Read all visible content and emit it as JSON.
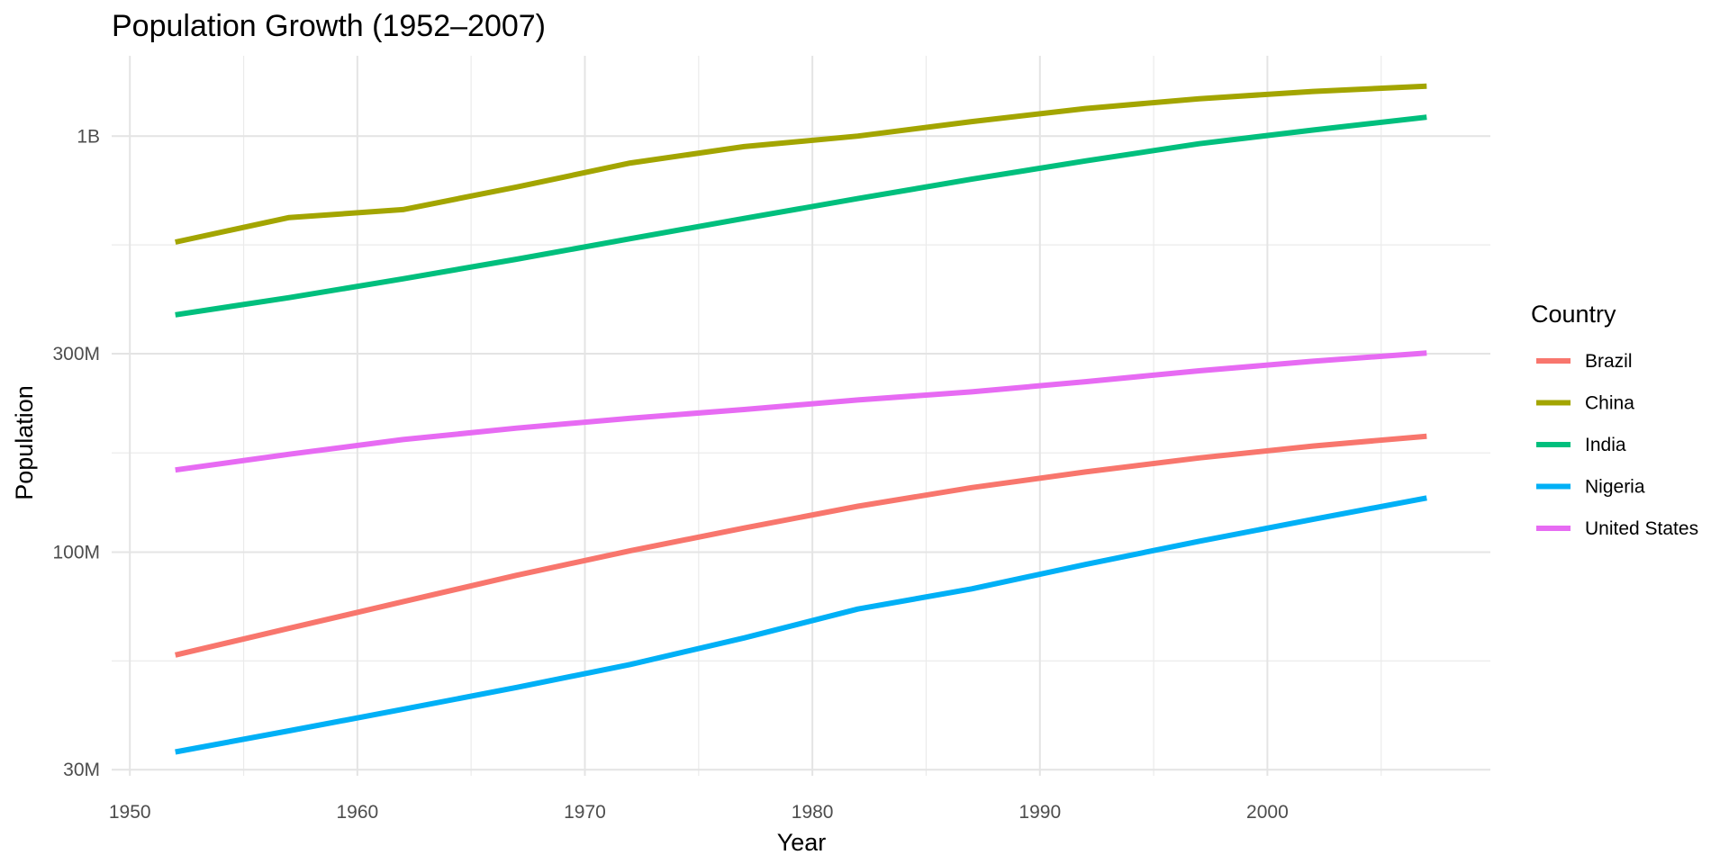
{
  "chart_data": {
    "type": "line",
    "title": "Population Growth (1952–2007)",
    "xlabel": "Year",
    "ylabel": "Population",
    "y_scale": "log",
    "xlim": [
      1949.2,
      2009.8
    ],
    "ylim": [
      29000000,
      1560000000
    ],
    "x_ticks": [
      1950,
      1960,
      1970,
      1980,
      1990,
      2000
    ],
    "x_tick_labels": [
      "1950",
      "1960",
      "1970",
      "1980",
      "1990",
      "2000"
    ],
    "y_ticks": [
      30000000,
      100000000,
      300000000,
      1000000000
    ],
    "y_tick_labels": [
      "30M",
      "100M",
      "300M",
      "1B"
    ],
    "y_minor_ticks": [
      54772256,
      173205081,
      547722558
    ],
    "legend_title": "Country",
    "legend_position": "right",
    "x": [
      1952,
      1957,
      1962,
      1967,
      1972,
      1977,
      1982,
      1987,
      1992,
      1997,
      2002,
      2007
    ],
    "series": [
      {
        "name": "Brazil",
        "color": "#F8766D",
        "values": [
          56600000,
          65600000,
          76000000,
          88000000,
          100800000,
          114300000,
          128900000,
          142900000,
          155900000,
          168500000,
          179900000,
          190000000
        ]
      },
      {
        "name": "China",
        "color": "#A3A500",
        "values": [
          556300000,
          637400000,
          665800000,
          754600000,
          862000000,
          943500000,
          1000300000,
          1084000000,
          1164970000,
          1230080000,
          1280400000,
          1318700000
        ]
      },
      {
        "name": "India",
        "color": "#00BF7D",
        "values": [
          372000000,
          409000000,
          454000000,
          506000000,
          567000000,
          634000000,
          708000000,
          788000000,
          872000000,
          959000000,
          1034200000,
          1110400000
        ]
      },
      {
        "name": "Nigeria",
        "color": "#00B0F6",
        "values": [
          33100000,
          37200000,
          41900000,
          47300000,
          53700000,
          62200000,
          73000000,
          81600000,
          93400000,
          106200000,
          119900000,
          135000000
        ]
      },
      {
        "name": "United States",
        "color": "#E76BF3",
        "values": [
          157600000,
          171900000,
          186500000,
          198700000,
          209900000,
          220200000,
          232200000,
          242800000,
          256900000,
          272900000,
          287700000,
          301100000
        ]
      }
    ]
  }
}
